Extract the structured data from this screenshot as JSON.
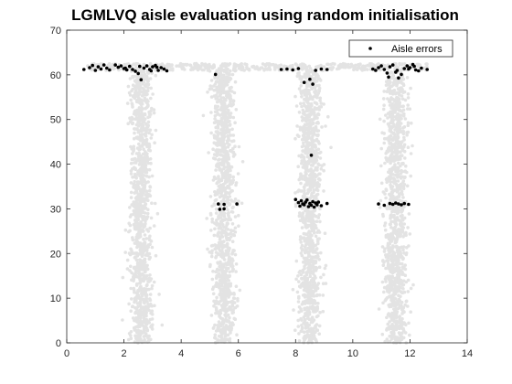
{
  "chart_data": {
    "type": "scatter",
    "title": "LGMLVQ aisle evaluation using random initialisation",
    "xlabel": "",
    "ylabel": "",
    "xlim": [
      0,
      14
    ],
    "ylim": [
      0,
      70
    ],
    "x_ticks": [
      0,
      2,
      4,
      6,
      8,
      10,
      12,
      14
    ],
    "y_ticks": [
      0,
      10,
      20,
      30,
      40,
      50,
      60,
      70
    ],
    "grid": false,
    "legend_position": "top-right",
    "background_points": {
      "color": "#e3e3e3",
      "description_columns": [
        {
          "x_center": 2.6,
          "x_spread": 0.35,
          "y_range": [
            0,
            61
          ]
        },
        {
          "x_center": 5.5,
          "x_spread": 0.35,
          "y_range": [
            0,
            61
          ]
        },
        {
          "x_center": 8.5,
          "x_spread": 0.35,
          "y_range": [
            0,
            61
          ]
        },
        {
          "x_center": 11.5,
          "x_spread": 0.35,
          "y_range": [
            0,
            61
          ]
        }
      ],
      "top_band": {
        "x_range": [
          0.7,
          12.6
        ],
        "y_range": [
          61,
          62.5
        ]
      }
    },
    "series": [
      {
        "name": "Aisle errors",
        "color": "#000000",
        "points": [
          [
            0.6,
            61.2
          ],
          [
            0.8,
            61.6
          ],
          [
            0.9,
            62.1
          ],
          [
            1.0,
            61.0
          ],
          [
            1.1,
            61.8
          ],
          [
            1.2,
            61.3
          ],
          [
            1.3,
            62.2
          ],
          [
            1.4,
            61.5
          ],
          [
            1.5,
            61.1
          ],
          [
            1.8,
            61.7
          ],
          [
            1.9,
            62.0
          ],
          [
            2.0,
            61.4
          ],
          [
            2.1,
            61.1
          ],
          [
            2.2,
            61.9
          ],
          [
            2.3,
            61.2
          ],
          [
            2.4,
            60.8
          ],
          [
            2.5,
            60.3
          ],
          [
            2.6,
            58.9
          ],
          [
            2.7,
            61.5
          ],
          [
            2.8,
            62.0
          ],
          [
            2.9,
            61.2
          ],
          [
            3.0,
            61.8
          ],
          [
            3.1,
            62.1
          ],
          [
            3.2,
            61.0
          ],
          [
            3.3,
            61.6
          ],
          [
            3.4,
            61.3
          ],
          [
            3.5,
            60.9
          ],
          [
            1.7,
            62.2
          ],
          [
            2.05,
            61.5
          ],
          [
            2.55,
            61.9
          ],
          [
            2.95,
            60.9
          ],
          [
            3.15,
            61.7
          ],
          [
            5.2,
            60.1
          ],
          [
            5.3,
            31.1
          ],
          [
            5.5,
            31.0
          ],
          [
            5.35,
            29.9
          ],
          [
            5.5,
            30.0
          ],
          [
            5.95,
            31.1
          ],
          [
            7.5,
            61.2
          ],
          [
            7.7,
            61.3
          ],
          [
            7.9,
            61.1
          ],
          [
            8.1,
            61.4
          ],
          [
            8.3,
            58.3
          ],
          [
            8.5,
            59.0
          ],
          [
            8.6,
            57.9
          ],
          [
            8.7,
            61.0
          ],
          [
            8.9,
            61.3
          ],
          [
            9.1,
            61.2
          ],
          [
            8.55,
            42.0
          ],
          [
            8.0,
            32.1
          ],
          [
            8.1,
            31.4
          ],
          [
            8.15,
            30.6
          ],
          [
            8.2,
            31.8
          ],
          [
            8.3,
            30.9
          ],
          [
            8.35,
            31.5
          ],
          [
            8.4,
            32.0
          ],
          [
            8.45,
            30.5
          ],
          [
            8.5,
            31.2
          ],
          [
            8.55,
            30.8
          ],
          [
            8.6,
            31.6
          ],
          [
            8.65,
            30.4
          ],
          [
            8.7,
            31.3
          ],
          [
            8.75,
            30.9
          ],
          [
            8.8,
            31.5
          ],
          [
            8.9,
            30.7
          ],
          [
            9.1,
            31.2
          ],
          [
            8.25,
            31.1
          ],
          [
            10.7,
            61.3
          ],
          [
            10.8,
            61.0
          ],
          [
            10.9,
            61.6
          ],
          [
            11.0,
            62.0
          ],
          [
            11.1,
            61.2
          ],
          [
            11.2,
            60.4
          ],
          [
            11.25,
            59.5
          ],
          [
            11.3,
            61.8
          ],
          [
            11.4,
            62.2
          ],
          [
            11.5,
            60.6
          ],
          [
            11.6,
            59.3
          ],
          [
            11.7,
            60.1
          ],
          [
            11.8,
            61.4
          ],
          [
            11.9,
            62.0
          ],
          [
            12.0,
            61.6
          ],
          [
            12.1,
            62.3
          ],
          [
            12.2,
            61.1
          ],
          [
            12.3,
            60.9
          ],
          [
            12.4,
            61.5
          ],
          [
            12.6,
            61.2
          ],
          [
            11.55,
            61.0
          ],
          [
            11.95,
            61.3
          ],
          [
            12.15,
            61.9
          ],
          [
            10.9,
            31.1
          ],
          [
            11.1,
            30.8
          ],
          [
            11.3,
            31.2
          ],
          [
            11.4,
            31.0
          ],
          [
            11.5,
            31.3
          ],
          [
            11.6,
            31.1
          ],
          [
            11.7,
            30.9
          ],
          [
            11.8,
            31.2
          ],
          [
            11.95,
            31.0
          ]
        ]
      }
    ]
  }
}
